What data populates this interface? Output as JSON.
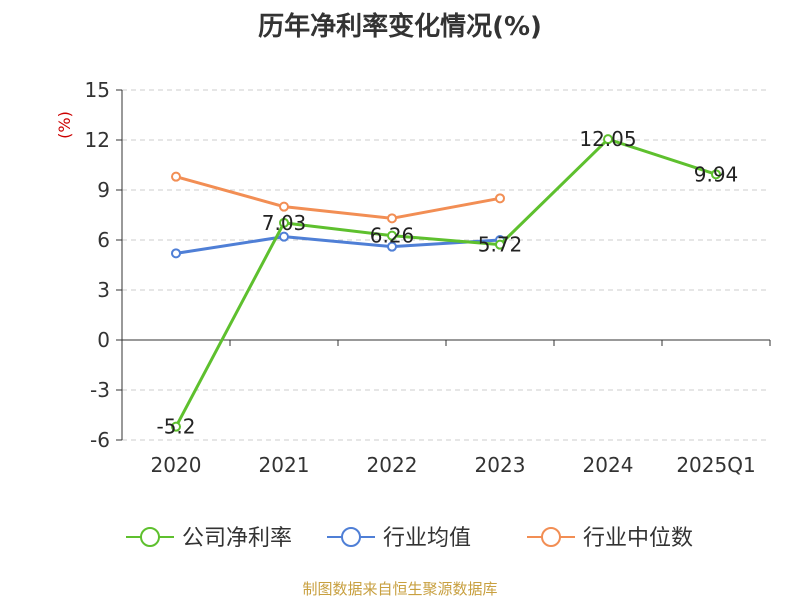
{
  "chart_data": {
    "type": "line",
    "title": "历年净利率变化情况(%)",
    "ylabel": "(%)",
    "categories": [
      "2020",
      "2021",
      "2022",
      "2023",
      "2024",
      "2025Q1"
    ],
    "yticks": [
      "15",
      "12",
      "9",
      "6",
      "3",
      "0",
      "-3",
      "-6"
    ],
    "ylim": [
      -6,
      15
    ],
    "grid": true,
    "legend_position": "bottom",
    "series": [
      {
        "name": "公司净利率",
        "color": "#5ec02e",
        "values": [
          -5.2,
          7.03,
          6.26,
          5.72,
          12.05,
          9.94
        ],
        "labels": [
          "-5.2",
          "7.03",
          "6.26",
          "5.72",
          "12.05",
          "9.94"
        ]
      },
      {
        "name": "行业均值",
        "color": "#4f7fd6",
        "values": [
          5.2,
          6.2,
          5.6,
          6.0,
          null,
          null
        ]
      },
      {
        "name": "行业中位数",
        "color": "#f28e54",
        "values": [
          9.8,
          8.0,
          7.3,
          8.5,
          null,
          null
        ]
      }
    ]
  },
  "source": "制图数据来自恒生聚源数据库"
}
